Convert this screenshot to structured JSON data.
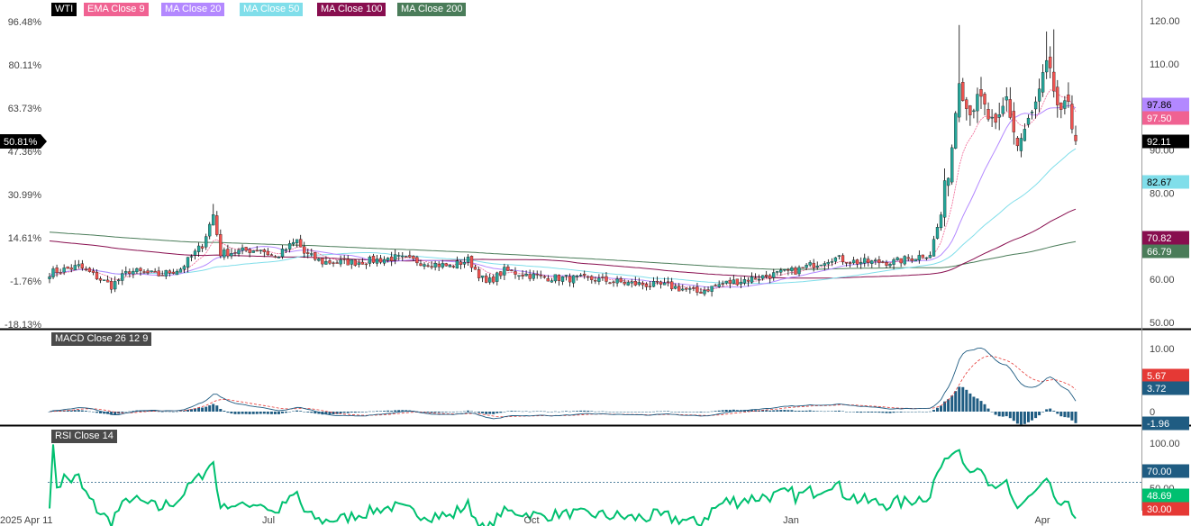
{
  "legend": [
    {
      "label": "WTI",
      "color": "#000000"
    },
    {
      "label": "EMA  Close 9",
      "color": "#f06292"
    },
    {
      "label": "MA  Close 20",
      "color": "#b388ff"
    },
    {
      "label": "MA  Close 50",
      "color": "#80deea"
    },
    {
      "label": "MA  Close 100",
      "color": "#880e4f"
    },
    {
      "label": "MA  Close 200",
      "color": "#4a7c59"
    }
  ],
  "colors": {
    "up": "#26a69a",
    "down": "#ef5350",
    "macd_line": "#1f5c82",
    "macd_signal": "#e53935",
    "macd_hist": "#1f5c82",
    "rsi_line": "#00c070"
  },
  "price_axis": {
    "ticks": [
      "120.00",
      "110.00",
      "90.00",
      "80.00",
      "60.00",
      "50.00"
    ]
  },
  "pct_axis": {
    "ticks": [
      "96.48%",
      "80.11%",
      "63.73%",
      "47.36%",
      "30.99%",
      "14.61%",
      "-1.76%",
      "-18.13%"
    ]
  },
  "x_axis": {
    "ticks": [
      "2025 Apr 11",
      "Jul",
      "Oct",
      "Jan",
      "Apr"
    ]
  },
  "price_badges": [
    {
      "label": "97.86",
      "bg": "#b388ff",
      "fg": "#000000"
    },
    {
      "label": "97.50",
      "bg": "#f06292",
      "fg": "#ffffff"
    },
    {
      "label": "92.11",
      "bg": "#000000",
      "fg": "#ffffff"
    },
    {
      "label": "82.67",
      "bg": "#80deea",
      "fg": "#000000"
    },
    {
      "label": "70.82",
      "bg": "#880e4f",
      "fg": "#ffffff"
    },
    {
      "label": "66.79",
      "bg": "#4a7c59",
      "fg": "#ffffff"
    }
  ],
  "pct_badge": {
    "label": "50.81%"
  },
  "macd": {
    "title": "MACD  Close 26 12 9",
    "axis_ticks": [
      "10.00",
      "0"
    ],
    "badges": [
      {
        "label": "5.67",
        "bg": "#e53935"
      },
      {
        "label": "3.72",
        "bg": "#1f5c82"
      },
      {
        "label": "-1.96",
        "bg": "#1f5c82"
      }
    ]
  },
  "rsi": {
    "title": "RSI  Close 14",
    "axis_ticks": [
      "100.00",
      "50.00"
    ],
    "badges": [
      {
        "label": "70.00",
        "bg": "#1f5c82"
      },
      {
        "label": "48.69",
        "bg": "#00c070"
      },
      {
        "label": "30.00",
        "bg": "#e53935"
      }
    ]
  },
  "chart_data": {
    "type": "candlestick",
    "title": "WTI",
    "x_range": [
      "2025-04-11",
      "2026-04-10"
    ],
    "y_range": [
      50,
      120
    ],
    "close_path": [
      [
        0,
        61.5
      ],
      [
        8,
        63
      ],
      [
        17,
        58.5
      ],
      [
        22,
        62
      ],
      [
        30,
        61
      ],
      [
        36,
        62.5
      ],
      [
        42,
        68
      ],
      [
        45,
        75
      ],
      [
        47,
        66
      ],
      [
        52,
        66.5
      ],
      [
        58,
        67
      ],
      [
        62,
        65
      ],
      [
        68,
        69
      ],
      [
        70,
        66
      ],
      [
        75,
        64
      ],
      [
        85,
        64
      ],
      [
        95,
        65
      ],
      [
        110,
        63
      ],
      [
        115,
        64.5
      ],
      [
        120,
        59
      ],
      [
        125,
        62
      ],
      [
        135,
        60.5
      ],
      [
        150,
        60
      ],
      [
        160,
        59
      ],
      [
        170,
        58.5
      ],
      [
        178,
        57
      ],
      [
        185,
        59
      ],
      [
        195,
        60.5
      ],
      [
        205,
        62
      ],
      [
        215,
        65
      ],
      [
        222,
        64
      ],
      [
        232,
        64
      ],
      [
        242,
        66
      ],
      [
        245,
        75
      ],
      [
        248,
        91
      ],
      [
        250,
        108
      ],
      [
        252,
        100
      ],
      [
        256,
        101
      ],
      [
        260,
        94
      ],
      [
        263,
        102
      ],
      [
        266,
        91
      ],
      [
        270,
        98
      ],
      [
        272,
        103
      ],
      [
        274,
        109
      ],
      [
        276,
        104
      ],
      [
        278,
        97
      ],
      [
        279,
        99
      ],
      [
        280,
        102
      ],
      [
        282,
        92.11
      ]
    ],
    "series": [
      {
        "name": "EMA  Close 9",
        "last": 97.5
      },
      {
        "name": "MA  Close 20",
        "last": 97.86
      },
      {
        "name": "MA  Close 50",
        "last": 82.67
      },
      {
        "name": "MA  Close 100",
        "last": 70.82
      },
      {
        "name": "MA  Close 200",
        "last": 66.79
      }
    ],
    "macd": {
      "last_macd": 3.72,
      "last_signal": 5.67,
      "last_histogram": -1.96
    },
    "rsi": {
      "last": 48.69,
      "overbought": 70,
      "oversold": 30
    }
  }
}
